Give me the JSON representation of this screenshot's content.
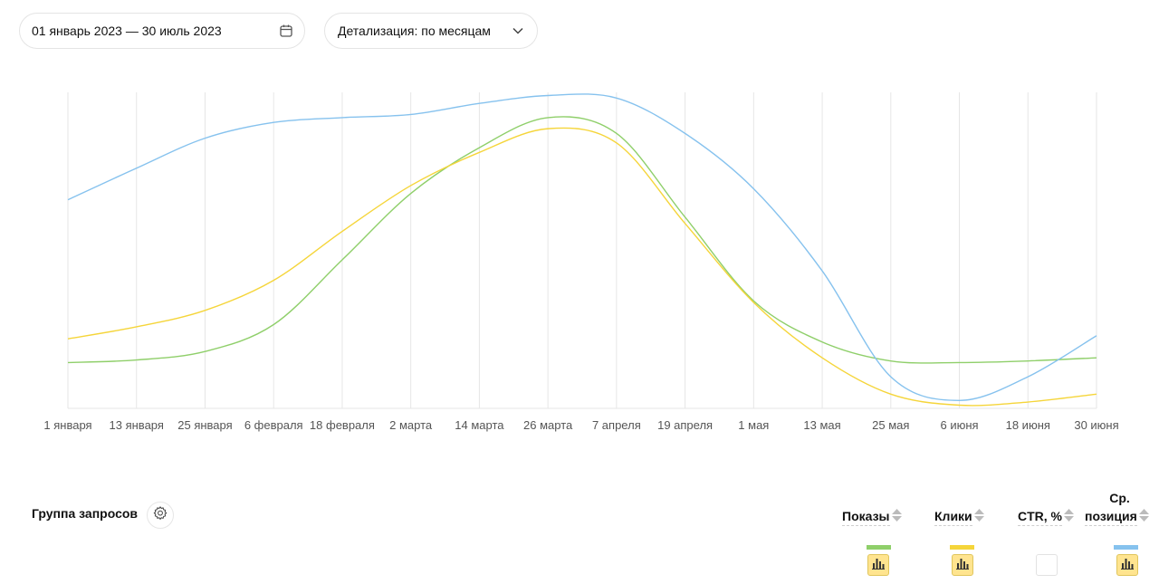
{
  "filters": {
    "date_range": "01 январь 2023 — 30 июль 2023",
    "detail": "Детализация: по месяцам"
  },
  "chart_data": {
    "type": "line",
    "x": [
      "1 января",
      "13 января",
      "25 января",
      "6 февраля",
      "18 февраля",
      "2 марта",
      "14 марта",
      "26 марта",
      "7 апреля",
      "19 апреля",
      "1 мая",
      "13 мая",
      "25 мая",
      "6 июня",
      "18 июня",
      "30 июня"
    ],
    "grid": "vertical",
    "legend": "table-below",
    "series": [
      {
        "name": "Показы",
        "color": "#8fcf6a",
        "values": [
          0.145,
          0.153,
          0.18,
          0.265,
          0.47,
          0.68,
          0.825,
          0.92,
          0.87,
          0.605,
          0.34,
          0.21,
          0.15,
          0.145,
          0.15,
          0.16
        ]
      },
      {
        "name": "Клики",
        "color": "#f5d53a",
        "values": [
          0.22,
          0.258,
          0.31,
          0.405,
          0.56,
          0.705,
          0.81,
          0.885,
          0.84,
          0.585,
          0.335,
          0.16,
          0.045,
          0.01,
          0.02,
          0.045
        ]
      },
      {
        "name": "Ср. позиция",
        "color": "#86c2ee",
        "values": [
          0.66,
          0.76,
          0.855,
          0.905,
          0.92,
          0.93,
          0.965,
          0.99,
          0.982,
          0.87,
          0.695,
          0.435,
          0.1,
          0.025,
          0.1,
          0.23
        ]
      }
    ]
  },
  "table": {
    "group_title": "Группа запросов",
    "columns": [
      {
        "label": "Показы",
        "swatch": "#8fcf6a",
        "chart_enabled": true
      },
      {
        "label": "Клики",
        "swatch": "#f5d53a",
        "chart_enabled": true
      },
      {
        "label": "CTR, %",
        "swatch": "",
        "chart_enabled": false
      },
      {
        "label_line1": "Ср.",
        "label_line2": "позиция",
        "swatch": "#86c2ee",
        "chart_enabled": true
      }
    ]
  },
  "icons": {
    "calendar": "calendar-icon",
    "dropdown": "chevron-down-icon",
    "settings": "gear-icon",
    "sort": "sort-icon",
    "chart_toggle": "bar-chart-icon"
  }
}
